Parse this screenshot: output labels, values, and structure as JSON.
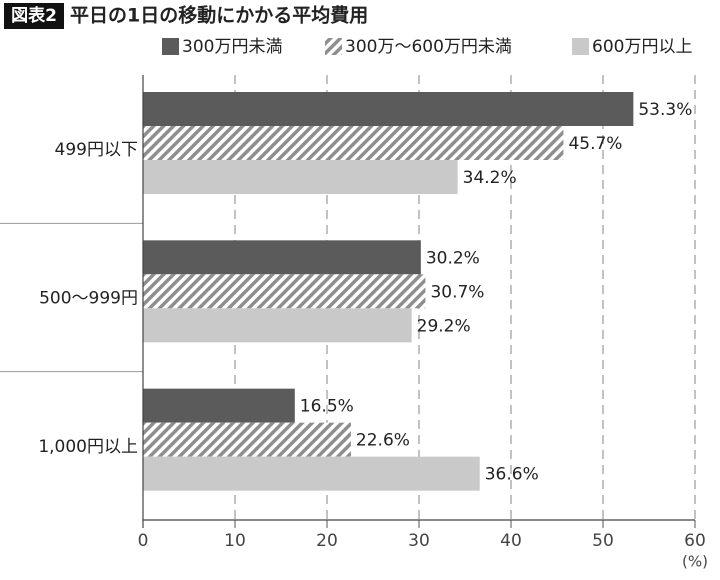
{
  "chart_data": {
    "type": "bar",
    "orientation": "horizontal",
    "label": "図表2",
    "title": "平日の1日の移動にかかる平均費用",
    "categories": [
      "499円以下",
      "500〜999円",
      "1,000円以上"
    ],
    "series": [
      {
        "name": "300万円未満",
        "color": "#5b5b5b",
        "values": [
          53.3,
          30.2,
          16.5
        ],
        "value_labels": [
          "53.3%",
          "30.2%",
          "16.5%"
        ]
      },
      {
        "name": "300万〜600万円未満",
        "color": "#8e8e8e",
        "hatch": true,
        "values": [
          45.7,
          30.7,
          22.6
        ],
        "value_labels": [
          "45.7%",
          "30.7%",
          "22.6%"
        ]
      },
      {
        "name": "600万円以上",
        "color": "#c9c9c9",
        "values": [
          34.2,
          29.2,
          36.6
        ],
        "value_labels": [
          "34.2%",
          "29.2%",
          "36.6%"
        ]
      }
    ],
    "xlim": [
      0,
      60
    ],
    "xticks": [
      0,
      10,
      20,
      30,
      40,
      50,
      60
    ],
    "xlabel": "(%)",
    "grid": true
  }
}
